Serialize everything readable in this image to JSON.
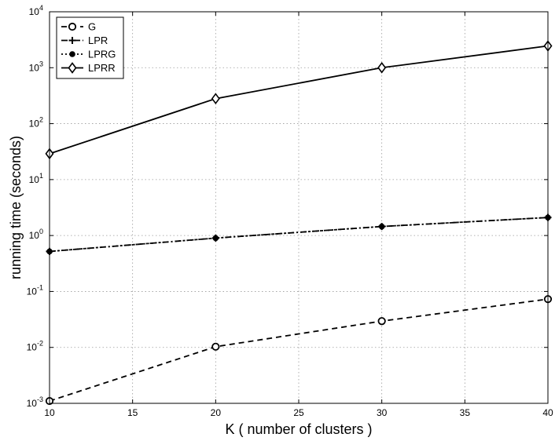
{
  "chart_data": {
    "type": "line",
    "xlabel": "K ( number of clusters )",
    "ylabel": "running time (seconds)",
    "x": [
      10,
      20,
      30,
      40
    ],
    "xlim": [
      10,
      40
    ],
    "xticks": [
      "10",
      "15",
      "20",
      "25",
      "30",
      "35",
      "40"
    ],
    "ylim": [
      0.001,
      10000
    ],
    "yscale": "log",
    "yticks": [
      {
        "base": "10",
        "exp": "-3"
      },
      {
        "base": "10",
        "exp": "-2"
      },
      {
        "base": "10",
        "exp": "-1"
      },
      {
        "base": "10",
        "exp": "0"
      },
      {
        "base": "10",
        "exp": "1"
      },
      {
        "base": "10",
        "exp": "2"
      },
      {
        "base": "10",
        "exp": "3"
      },
      {
        "base": "10",
        "exp": "4"
      }
    ],
    "grid": true,
    "legend_position": "top-left",
    "series": [
      {
        "name": "G",
        "values": [
          0.0011,
          0.0103,
          0.0295,
          0.073
        ],
        "marker": "circle",
        "dash": "dashed"
      },
      {
        "name": "LPR",
        "values": [
          0.52,
          0.9,
          1.45,
          2.1
        ],
        "marker": "plus",
        "dash": "dashdot"
      },
      {
        "name": "LPRG",
        "values": [
          0.52,
          0.9,
          1.45,
          2.1
        ],
        "marker": "dot",
        "dash": "dotted"
      },
      {
        "name": "LPRR",
        "values": [
          29,
          280,
          1000,
          2450
        ],
        "marker": "diamond",
        "dash": "solid"
      }
    ]
  }
}
